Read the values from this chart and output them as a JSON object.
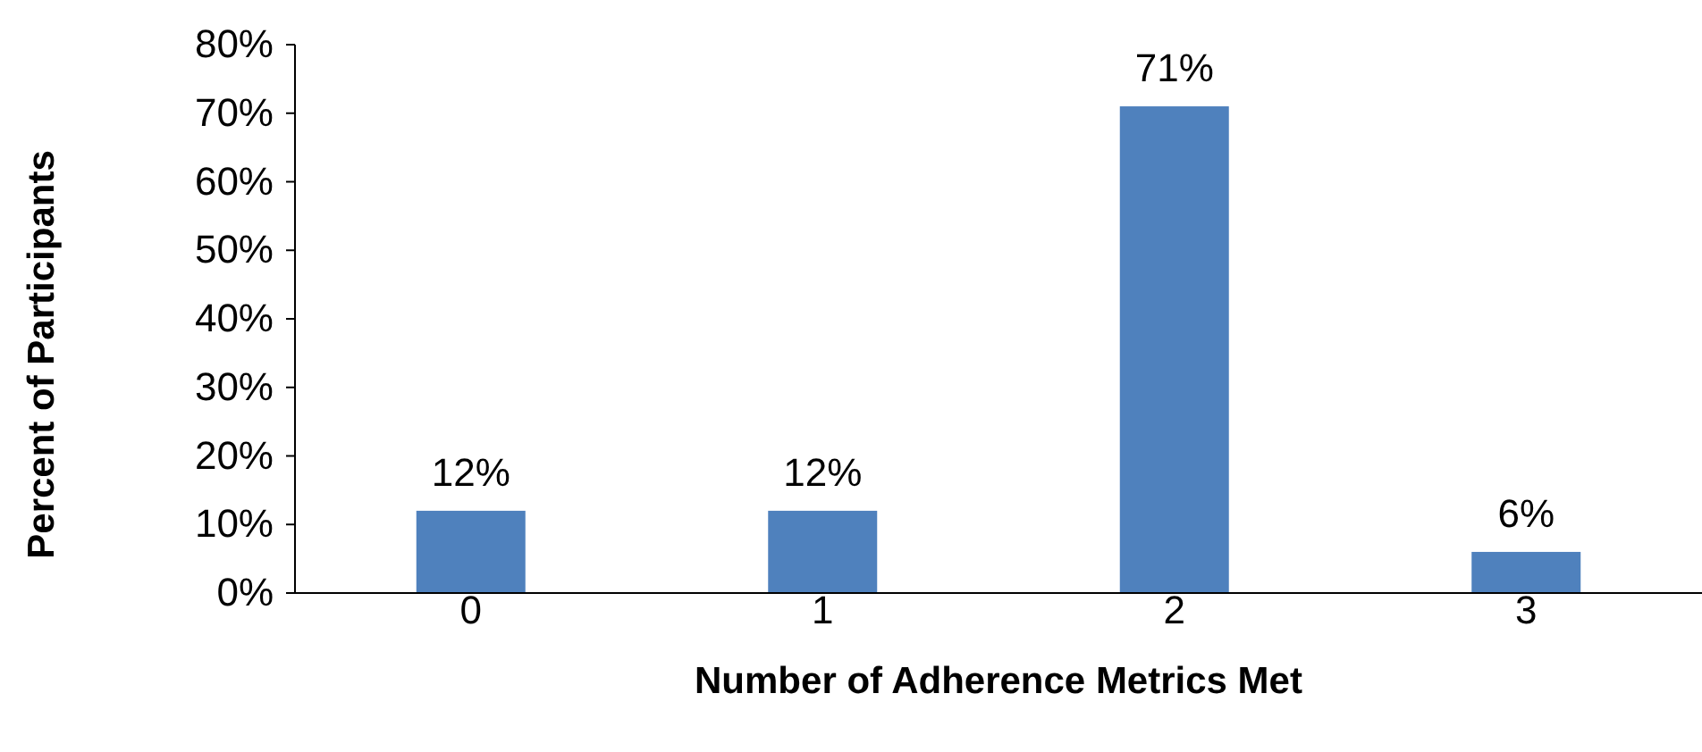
{
  "chart_data": {
    "type": "bar",
    "xlabel": "Number of Adherence Metrics Met",
    "ylabel": "Percent of Participants",
    "categories": [
      "0",
      "1",
      "2",
      "3"
    ],
    "values": [
      12,
      12,
      71,
      6
    ],
    "value_labels": [
      "12%",
      "12%",
      "71%",
      "6%"
    ],
    "color": "#4f81bd",
    "ylim": [
      0,
      80
    ],
    "yticks": [
      {
        "value": 0,
        "label": "0%"
      },
      {
        "value": 10,
        "label": "10%"
      },
      {
        "value": 20,
        "label": "20%"
      },
      {
        "value": 30,
        "label": "30%"
      },
      {
        "value": 40,
        "label": "40%"
      },
      {
        "value": 50,
        "label": "50%"
      },
      {
        "value": 60,
        "label": "60%"
      },
      {
        "value": 70,
        "label": "70%"
      },
      {
        "value": 80,
        "label": "80%"
      }
    ],
    "grid": false
  }
}
